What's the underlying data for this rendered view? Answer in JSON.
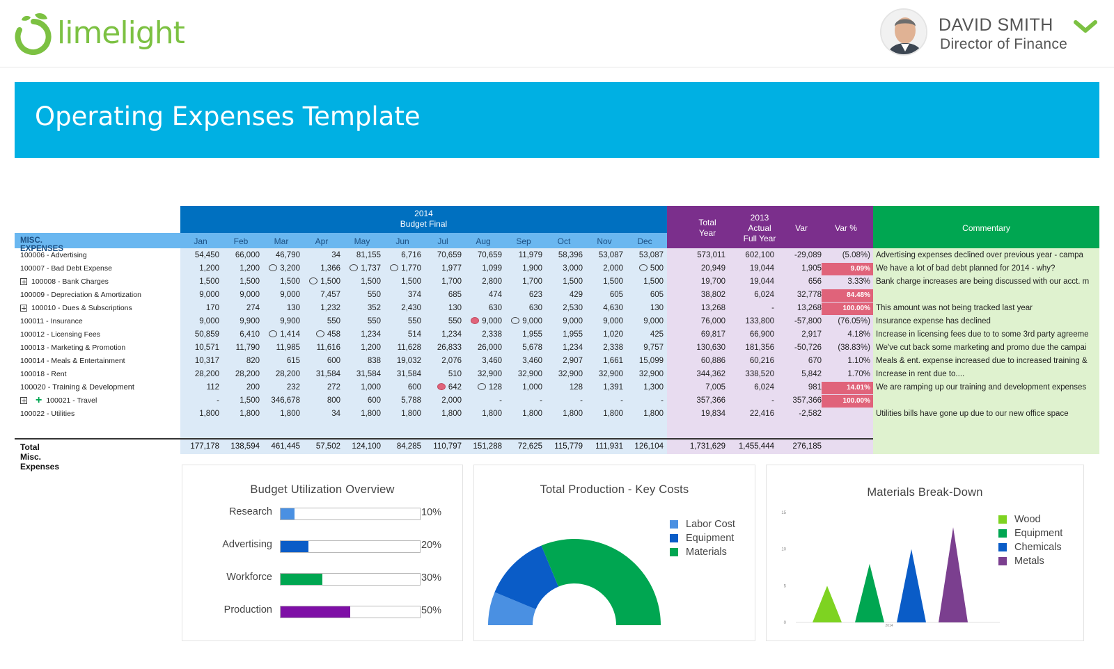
{
  "brand": {
    "name": "limelight",
    "color": "#7cc142"
  },
  "user": {
    "name": "DAVID SMITH",
    "role": "Director of Finance"
  },
  "page": {
    "title": "Operating Expenses Template"
  },
  "table": {
    "section_label": "MISC. EXPENSES",
    "budget_header": [
      "2014",
      "Budget Final"
    ],
    "months": [
      "Jan",
      "Feb",
      "Mar",
      "Apr",
      "May",
      "Jun",
      "Jul",
      "Aug",
      "Sep",
      "Oct",
      "Nov",
      "Dec"
    ],
    "col_total_year": [
      "Total",
      "Year"
    ],
    "col_actual": [
      "2013",
      "Actual",
      "Full Year"
    ],
    "col_var": "Var",
    "col_var_pct": "Var %",
    "col_commentary": "Commentary",
    "rows": [
      {
        "label": "100006 - Advertising",
        "expand": "",
        "values": [
          "54,450",
          "66,000",
          "46,790",
          "34",
          "81,155",
          "6,716",
          "70,659",
          "70,659",
          "11,979",
          "58,396",
          "53,087",
          "53,087"
        ],
        "bubbles": {},
        "total": "573,011",
        "actual": "602,100",
        "var": "-29,089",
        "var_pct": "(5.08%)",
        "var_pct_red": false,
        "comment": "Advertising expenses declined over previous year - campa"
      },
      {
        "label": "100007 - Bad Debt Expense",
        "expand": "",
        "values": [
          "1,200",
          "1,200",
          "3,200",
          "1,366",
          "1,737",
          "1,770",
          "1,977",
          "1,099",
          "1,900",
          "3,000",
          "2,000",
          "500"
        ],
        "bubbles": {
          "2": "n",
          "4": "n",
          "5": "n",
          "11": "n"
        },
        "total": "20,949",
        "actual": "19,044",
        "var": "1,905",
        "var_pct": "9.09%",
        "var_pct_red": true,
        "comment": "We have a lot of bad debt planned for 2014 - why?"
      },
      {
        "label": "100008 - Bank Charges",
        "expand": "box",
        "values": [
          "1,500",
          "1,500",
          "1,500",
          "1,500",
          "1,500",
          "1,500",
          "1,700",
          "2,800",
          "1,700",
          "1,500",
          "1,500",
          "1,500"
        ],
        "bubbles": {
          "3": "n"
        },
        "total": "19,700",
        "actual": "19,044",
        "var": "656",
        "var_pct": "3.33%",
        "var_pct_red": false,
        "comment": "Bank charge increases are being discussed with our acct. m"
      },
      {
        "label": "100009 - Depreciation & Amortization",
        "expand": "",
        "values": [
          "9,000",
          "9,000",
          "9,000",
          "7,457",
          "550",
          "374",
          "685",
          "474",
          "623",
          "429",
          "605",
          "605"
        ],
        "bubbles": {},
        "total": "38,802",
        "actual": "6,024",
        "var": "32,778",
        "var_pct": "84.48%",
        "var_pct_red": true,
        "comment": ""
      },
      {
        "label": "100010 - Dues & Subscriptions",
        "expand": "box",
        "values": [
          "170",
          "274",
          "130",
          "1,232",
          "352",
          "2,430",
          "130",
          "630",
          "630",
          "2,530",
          "4,630",
          "130"
        ],
        "bubbles": {},
        "total": "13,268",
        "actual": "-",
        "var": "13,268",
        "var_pct": "100.00%",
        "var_pct_red": true,
        "comment": "This amount was not being tracked last year"
      },
      {
        "label": "100011 - Insurance",
        "expand": "",
        "values": [
          "9,000",
          "9,900",
          "9,900",
          "550",
          "550",
          "550",
          "550",
          "9,000",
          "9,000",
          "9,000",
          "9,000",
          "9,000"
        ],
        "bubbles": {
          "7": "r",
          "8": "n"
        },
        "total": "76,000",
        "actual": "133,800",
        "var": "-57,800",
        "var_pct": "(76.05%)",
        "var_pct_red": false,
        "comment": "Insurance expense has declined"
      },
      {
        "label": "100012 - Licensing Fees",
        "expand": "",
        "values": [
          "50,859",
          "6,410",
          "1,414",
          "458",
          "1,234",
          "514",
          "1,234",
          "2,338",
          "1,955",
          "1,955",
          "1,020",
          "425"
        ],
        "bubbles": {
          "2": "n",
          "3": "n"
        },
        "total": "69,817",
        "actual": "66,900",
        "var": "2,917",
        "var_pct": "4.18%",
        "var_pct_red": false,
        "comment": "Increase in licensing fees due to to some 3rd party agreeme"
      },
      {
        "label": "100013 - Marketing & Promotion",
        "expand": "",
        "values": [
          "10,571",
          "11,790",
          "11,985",
          "11,616",
          "1,200",
          "11,628",
          "26,833",
          "26,000",
          "5,678",
          "1,234",
          "2,338",
          "9,757"
        ],
        "bubbles": {},
        "total": "130,630",
        "actual": "181,356",
        "var": "-50,726",
        "var_pct": "(38.83%)",
        "var_pct_red": false,
        "comment": "We've cut back some marketing and promo due the campai"
      },
      {
        "label": "100014 - Meals & Entertainment",
        "expand": "",
        "values": [
          "10,317",
          "820",
          "615",
          "600",
          "838",
          "19,032",
          "2,076",
          "3,460",
          "3,460",
          "2,907",
          "1,661",
          "15,099"
        ],
        "bubbles": {},
        "total": "60,886",
        "actual": "60,216",
        "var": "670",
        "var_pct": "1.10%",
        "var_pct_red": false,
        "comment": "Meals & ent. expense increased due to increased training &"
      },
      {
        "label": "100018 - Rent",
        "expand": "",
        "values": [
          "28,200",
          "28,200",
          "28,200",
          "31,584",
          "31,584",
          "31,584",
          "510",
          "32,900",
          "32,900",
          "32,900",
          "32,900",
          "32,900"
        ],
        "bubbles": {},
        "total": "344,362",
        "actual": "338,520",
        "var": "5,842",
        "var_pct": "1.70%",
        "var_pct_red": false,
        "comment": "Increase in rent due to...."
      },
      {
        "label": "100020 - Training & Development",
        "expand": "",
        "bold": true,
        "values": [
          "112",
          "200",
          "232",
          "272",
          "1,000",
          "600",
          "642",
          "128",
          "1,000",
          "128",
          "1,391",
          "1,300"
        ],
        "bubbles": {
          "6": "r",
          "7": "n"
        },
        "total": "7,005",
        "actual": "6,024",
        "var": "981",
        "var_pct": "14.01%",
        "var_pct_red": true,
        "comment": "We are ramping up our training and development expenses"
      },
      {
        "label": "100021 - Travel",
        "expand": "boxplus",
        "values": [
          "-",
          "1,500",
          "346,678",
          "800",
          "600",
          "5,788",
          "2,000",
          "-",
          "-",
          "-",
          "-",
          "-"
        ],
        "bubbles": {},
        "total": "357,366",
        "actual": "-",
        "var": "357,366",
        "var_pct": "100.00%",
        "var_pct_red": true,
        "comment": ""
      },
      {
        "label": "100022 - Utilities",
        "expand": "",
        "values": [
          "1,800",
          "1,800",
          "1,800",
          "34",
          "1,800",
          "1,800",
          "1,800",
          "1,800",
          "1,800",
          "1,800",
          "1,800",
          "1,800"
        ],
        "bubbles": {},
        "total": "19,834",
        "actual": "22,416",
        "var": "-2,582",
        "var_pct": "",
        "var_pct_red": false,
        "comment": "Utilities bills have gone up due to our new office space"
      }
    ],
    "total_label": "Total Misc. Expenses",
    "totals": [
      "177,178",
      "138,594",
      "461,445",
      "57,502",
      "124,100",
      "84,285",
      "110,797",
      "151,288",
      "72,625",
      "115,779",
      "111,931",
      "126,104"
    ],
    "total_year": "1,731,629",
    "total_actual": "1,455,444",
    "total_var": "276,185"
  },
  "budget_card": {
    "title": "Budget Utilization Overview",
    "items": [
      {
        "label": "Research",
        "value": 10,
        "pct": "10%",
        "color": "#4a90e2"
      },
      {
        "label": "Advertising",
        "value": 20,
        "pct": "20%",
        "color": "#0a5cc7"
      },
      {
        "label": "Workforce",
        "value": 30,
        "pct": "30%",
        "color": "#00a651"
      },
      {
        "label": "Production",
        "value": 50,
        "pct": "50%",
        "color": "#7e0fa6"
      }
    ]
  },
  "production_card": {
    "title": "Total Production - Key Costs",
    "chart_data": {
      "type": "pie",
      "series": [
        {
          "name": "Labor Cost",
          "value": 10,
          "color": "#4a90e2"
        },
        {
          "name": "Equipment",
          "value": 20,
          "color": "#0a5cc7"
        },
        {
          "name": "Materials",
          "value": 50,
          "color": "#00a651"
        }
      ]
    }
  },
  "materials_card": {
    "title": "Materials Break-Down",
    "chart_data": {
      "type": "area",
      "x": [
        "2014"
      ],
      "ylim": [
        0,
        15
      ],
      "yticks": [
        "0",
        "5",
        "10",
        "15"
      ],
      "series": [
        {
          "name": "Wood",
          "value": 5,
          "color": "#7ed321"
        },
        {
          "name": "Equipment",
          "value": 8,
          "color": "#00a651"
        },
        {
          "name": "Chemicals",
          "value": 10,
          "color": "#0a5cc7"
        },
        {
          "name": "Metals",
          "value": 13,
          "color": "#7b3f8f"
        }
      ]
    }
  }
}
